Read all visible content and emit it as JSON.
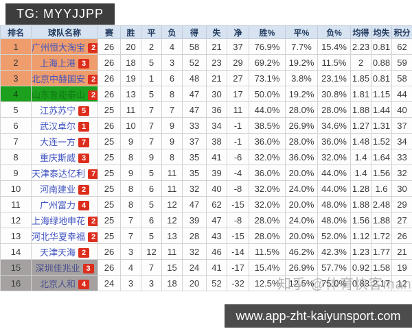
{
  "promo": {
    "tg_label": "TG: MYYJJPP",
    "url": "www.app-zht-kaiyunsport.com"
  },
  "watermark": {
    "text": "知乎 @体育快客man"
  },
  "colors": {
    "header_bg": "#d7e3f1",
    "highlight_salmon": "#ef9d6c",
    "highlight_green": "#1ca01e",
    "highlight_gray": "#a5a1a1",
    "badge_red": "#dd2d1c",
    "win_pct_col": "#f1d8ca",
    "draw_pct_col": "#fae9d5",
    "loss_pct_col": "#e3f1da",
    "avg_gf_col": "#e9f1fa",
    "avg_ga_col": "#d8e7f4",
    "points_col": "#fbf6cd"
  },
  "table": {
    "columns": [
      "排名",
      "球队名称",
      "赛",
      "胜",
      "平",
      "负",
      "得",
      "失",
      "净",
      "胜%",
      "平%",
      "负%",
      "均得",
      "均失",
      "积分"
    ],
    "rows": [
      {
        "rank": "1",
        "team": "广州恒大淘宝",
        "badge": "2",
        "highlight": "salmon",
        "stats": [
          "26",
          "20",
          "2",
          "4",
          "58",
          "21",
          "37",
          "76.9%",
          "7.7%",
          "15.4%",
          "2.23",
          "0.81",
          "62"
        ]
      },
      {
        "rank": "2",
        "team": "上海上港",
        "badge": "3",
        "highlight": "salmon",
        "stats": [
          "26",
          "18",
          "5",
          "3",
          "52",
          "23",
          "29",
          "69.2%",
          "19.2%",
          "11.5%",
          "2",
          "0.88",
          "59"
        ]
      },
      {
        "rank": "3",
        "team": "北京中赫国安",
        "badge": "2",
        "highlight": "salmon",
        "stats": [
          "26",
          "19",
          "1",
          "6",
          "48",
          "21",
          "27",
          "73.1%",
          "3.8%",
          "23.1%",
          "1.85",
          "0.81",
          "58"
        ]
      },
      {
        "rank": "4",
        "team": "山东鲁能泰山",
        "badge": "2",
        "highlight": "green",
        "stats": [
          "26",
          "13",
          "5",
          "8",
          "47",
          "30",
          "17",
          "50.0%",
          "19.2%",
          "30.8%",
          "1.81",
          "1.15",
          "44"
        ]
      },
      {
        "rank": "5",
        "team": "江苏苏宁",
        "badge": "5",
        "highlight": "",
        "stats": [
          "25",
          "11",
          "7",
          "7",
          "47",
          "36",
          "11",
          "44.0%",
          "28.0%",
          "28.0%",
          "1.88",
          "1.44",
          "40"
        ]
      },
      {
        "rank": "6",
        "team": "武汉卓尔",
        "badge": "1",
        "highlight": "",
        "stats": [
          "26",
          "10",
          "7",
          "9",
          "33",
          "34",
          "-1",
          "38.5%",
          "26.9%",
          "34.6%",
          "1.27",
          "1.31",
          "37"
        ]
      },
      {
        "rank": "7",
        "team": "大连一方",
        "badge": "7",
        "highlight": "",
        "stats": [
          "25",
          "9",
          "7",
          "9",
          "37",
          "38",
          "-1",
          "36.0%",
          "28.0%",
          "36.0%",
          "1.48",
          "1.52",
          "34"
        ]
      },
      {
        "rank": "8",
        "team": "重庆斯威",
        "badge": "3",
        "highlight": "",
        "stats": [
          "25",
          "8",
          "9",
          "8",
          "35",
          "41",
          "-6",
          "32.0%",
          "36.0%",
          "32.0%",
          "1.4",
          "1.64",
          "33"
        ]
      },
      {
        "rank": "9",
        "team": "天津泰达亿利",
        "badge": "7",
        "highlight": "",
        "stats": [
          "25",
          "9",
          "5",
          "11",
          "35",
          "39",
          "-4",
          "36.0%",
          "20.0%",
          "44.0%",
          "1.4",
          "1.56",
          "32"
        ]
      },
      {
        "rank": "10",
        "team": "河南建业",
        "badge": "2",
        "highlight": "",
        "stats": [
          "25",
          "8",
          "6",
          "11",
          "32",
          "40",
          "-8",
          "32.0%",
          "24.0%",
          "44.0%",
          "1.28",
          "1.6",
          "30"
        ]
      },
      {
        "rank": "11",
        "team": "广州富力",
        "badge": "4",
        "highlight": "",
        "stats": [
          "25",
          "8",
          "5",
          "12",
          "47",
          "62",
          "-15",
          "32.0%",
          "20.0%",
          "48.0%",
          "1.88",
          "2.48",
          "29"
        ]
      },
      {
        "rank": "12",
        "team": "上海绿地申花",
        "badge": "2",
        "highlight": "",
        "stats": [
          "25",
          "7",
          "6",
          "12",
          "39",
          "47",
          "-8",
          "28.0%",
          "24.0%",
          "48.0%",
          "1.56",
          "1.88",
          "27"
        ]
      },
      {
        "rank": "13",
        "team": "河北华夏幸福",
        "badge": "2",
        "highlight": "",
        "stats": [
          "25",
          "7",
          "5",
          "13",
          "28",
          "43",
          "-15",
          "28.0%",
          "20.0%",
          "52.0%",
          "1.12",
          "1.72",
          "26"
        ]
      },
      {
        "rank": "14",
        "team": "天津天海",
        "badge": "2",
        "highlight": "",
        "stats": [
          "26",
          "3",
          "12",
          "11",
          "32",
          "46",
          "-14",
          "11.5%",
          "46.2%",
          "42.3%",
          "1.23",
          "1.77",
          "21"
        ]
      },
      {
        "rank": "15",
        "team": "深圳佳兆业",
        "badge": "3",
        "highlight": "gray",
        "stats": [
          "26",
          "4",
          "7",
          "15",
          "24",
          "41",
          "-17",
          "15.4%",
          "26.9%",
          "57.7%",
          "0.92",
          "1.58",
          "19"
        ]
      },
      {
        "rank": "16",
        "team": "北京人和",
        "badge": "4",
        "highlight": "gray",
        "stats": [
          "24",
          "3",
          "3",
          "18",
          "20",
          "52",
          "-32",
          "12.5%",
          "12.5%",
          "75.0%",
          "0.83",
          "2.17",
          "12"
        ]
      }
    ]
  }
}
